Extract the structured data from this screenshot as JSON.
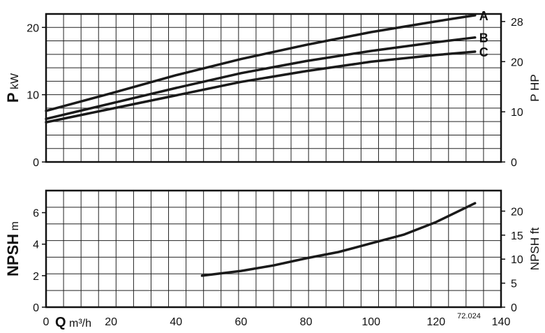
{
  "chart_data": [
    {
      "type": "line",
      "panel": "power",
      "x_label": {
        "symbol": "Q",
        "unit": "m³/h"
      },
      "x_ticks": [
        0,
        20,
        40,
        60,
        80,
        100,
        120,
        140
      ],
      "xlim": [
        0,
        140
      ],
      "y_label": {
        "symbol": "P",
        "unit": "kW"
      },
      "ylim": [
        0,
        22
      ],
      "y_ticks": [
        0,
        10,
        20
      ],
      "y2_label": "P HP",
      "y2_ticks": [
        0,
        10,
        20,
        28
      ],
      "y2_factor": 1.341,
      "grid": true,
      "series": [
        {
          "name": "A",
          "x": [
            0,
            20,
            40,
            60,
            80,
            100,
            120,
            132
          ],
          "y": [
            7.6,
            10.2,
            12.9,
            15.3,
            17.4,
            19.3,
            20.9,
            21.8
          ]
        },
        {
          "name": "B",
          "x": [
            0,
            20,
            40,
            60,
            80,
            100,
            120,
            132
          ],
          "y": [
            6.4,
            8.7,
            11.0,
            13.2,
            15.0,
            16.5,
            17.8,
            18.5
          ]
        },
        {
          "name": "C",
          "x": [
            0,
            20,
            40,
            60,
            80,
            100,
            120,
            132
          ],
          "y": [
            5.9,
            7.9,
            9.9,
            11.9,
            13.5,
            14.9,
            15.9,
            16.4
          ]
        }
      ]
    },
    {
      "type": "line",
      "panel": "npsh",
      "x_label": {
        "symbol": "Q",
        "unit": "m³/h"
      },
      "x_ticks": [
        0,
        20,
        40,
        60,
        80,
        100,
        120,
        140
      ],
      "xlim": [
        0,
        140
      ],
      "y_label": {
        "symbol": "NPSH",
        "unit": "m"
      },
      "ylim": [
        0,
        7.4
      ],
      "y_ticks": [
        0,
        2,
        4,
        6
      ],
      "y2_label": "NPSH ft",
      "y2_ticks": [
        0,
        5,
        10,
        15,
        20
      ],
      "y2_factor": 3.281,
      "grid": true,
      "series": [
        {
          "name": "NPSH",
          "x": [
            48,
            60,
            70,
            80,
            90,
            100,
            110,
            120,
            132
          ],
          "y": [
            2.0,
            2.3,
            2.65,
            3.1,
            3.5,
            4.05,
            4.6,
            5.4,
            6.6
          ]
        }
      ],
      "note": "72.024"
    }
  ],
  "curve_labels": [
    "A",
    "B",
    "C"
  ]
}
